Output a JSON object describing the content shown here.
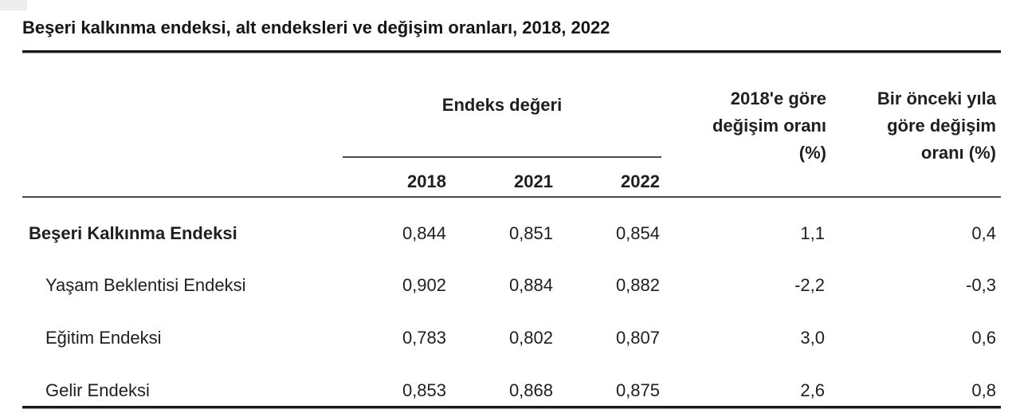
{
  "title": "Beşeri kalkınma endeksi, alt endeksleri ve değişim oranları, 2018, 2022",
  "colors": {
    "background": "#ffffff",
    "text": "#1f1f1f",
    "rule_thick": "#191919",
    "rule_thin": "#4a4a4a"
  },
  "table": {
    "index_value_header": "Endeks değeri",
    "year_columns": [
      "2018",
      "2021",
      "2022"
    ],
    "change_vs_2018_header_lines": [
      "2018'e göre",
      "değişim oranı",
      "(%)"
    ],
    "change_vs_prev_year_header_lines": [
      "Bir önceki yıla",
      "göre değişim",
      "oranı (%)"
    ],
    "rows": [
      {
        "label": "Beşeri Kalkınma Endeksi",
        "values": {
          "y2018": "0,844",
          "y2021": "0,851",
          "y2022": "0,854",
          "change_vs_2018": "1,1",
          "change_vs_prev": "0,4"
        }
      },
      {
        "label": "Yaşam Beklentisi Endeksi",
        "values": {
          "y2018": "0,902",
          "y2021": "0,884",
          "y2022": "0,882",
          "change_vs_2018": "-2,2",
          "change_vs_prev": "-0,3"
        }
      },
      {
        "label": "Eğitim Endeksi",
        "values": {
          "y2018": "0,783",
          "y2021": "0,802",
          "y2022": "0,807",
          "change_vs_2018": "3,0",
          "change_vs_prev": "0,6"
        }
      },
      {
        "label": "Gelir Endeksi",
        "values": {
          "y2018": "0,853",
          "y2021": "0,868",
          "y2022": "0,875",
          "change_vs_2018": "2,6",
          "change_vs_prev": "0,8"
        }
      }
    ]
  },
  "chart_data": {
    "type": "table",
    "title": "Beşeri kalkınma endeksi, alt endeksleri ve değişim oranları, 2018, 2022",
    "decimal_separator": ",",
    "column_groups": [
      {
        "label": "Endeks değeri",
        "columns": [
          "2018",
          "2021",
          "2022"
        ]
      }
    ],
    "columns": [
      "",
      "2018",
      "2021",
      "2022",
      "2018'e göre değişim oranı (%)",
      "Bir önceki yıla göre değişim oranı (%)"
    ],
    "rows": [
      {
        "label": "Beşeri Kalkınma Endeksi",
        "y2018": 0.844,
        "y2021": 0.851,
        "y2022": 0.854,
        "change_vs_2018_pct": 1.1,
        "change_vs_prev_year_pct": 0.4
      },
      {
        "label": "Yaşam Beklentisi Endeksi",
        "y2018": 0.902,
        "y2021": 0.884,
        "y2022": 0.882,
        "change_vs_2018_pct": -2.2,
        "change_vs_prev_year_pct": -0.3
      },
      {
        "label": "Eğitim Endeksi",
        "y2018": 0.783,
        "y2021": 0.802,
        "y2022": 0.807,
        "change_vs_2018_pct": 3.0,
        "change_vs_prev_year_pct": 0.6
      },
      {
        "label": "Gelir Endeksi",
        "y2018": 0.853,
        "y2021": 0.868,
        "y2022": 0.875,
        "change_vs_2018_pct": 2.6,
        "change_vs_prev_year_pct": 0.8
      }
    ]
  }
}
